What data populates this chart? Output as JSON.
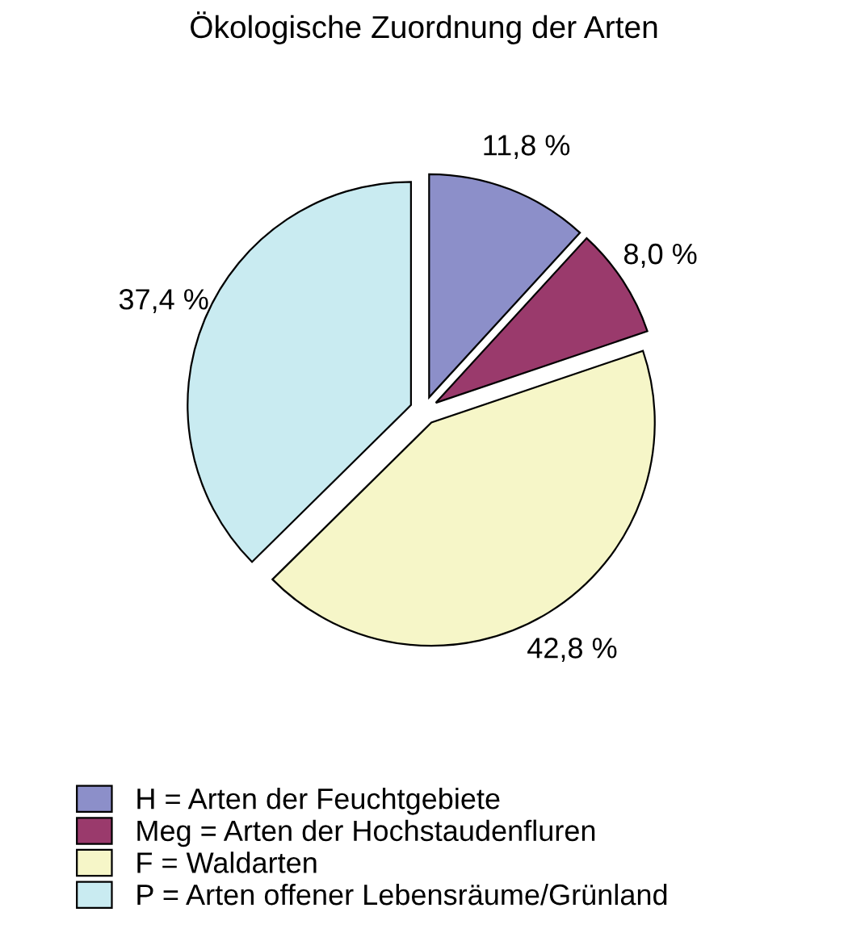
{
  "chart_data": {
    "type": "pie",
    "title": "Ökologische Zuordnung der Arten",
    "categories": [
      "H = Arten der Feuchtgebiete",
      "Meg = Arten der Hochstaudenfluren",
      "F = Waldarten",
      "P = Arten offener Lebensräume/Grünland"
    ],
    "values": [
      11.8,
      8.0,
      42.8,
      37.4
    ],
    "colors": [
      "#8c8fc9",
      "#9a3a6c",
      "#f6f6c8",
      "#c9ebf1"
    ],
    "value_labels": [
      "11,8 %",
      "8,0 %",
      "42,8 %",
      "37,4 %"
    ],
    "legend": "bottom left"
  }
}
